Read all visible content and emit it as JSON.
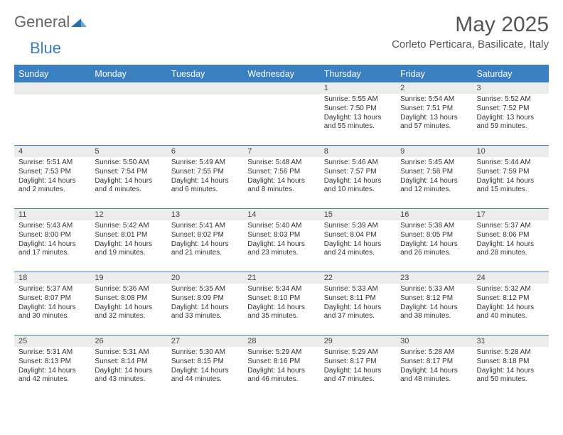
{
  "logo": {
    "part1": "General",
    "part2": "Blue"
  },
  "title": "May 2025",
  "location": "Corleto Perticara, Basilicate, Italy",
  "colors": {
    "accent": "#3a7fbf",
    "header_bg": "#3a7fbf",
    "daynum_bg": "#ececec",
    "text": "#333333",
    "title_text": "#555555",
    "background": "#ffffff"
  },
  "typography": {
    "title_fontsize": 30,
    "location_fontsize": 15,
    "header_fontsize": 12.5,
    "cell_fontsize": 10
  },
  "day_headers": [
    "Sunday",
    "Monday",
    "Tuesday",
    "Wednesday",
    "Thursday",
    "Friday",
    "Saturday"
  ],
  "weeks": [
    [
      {
        "n": "",
        "sr": "",
        "ss": "",
        "dl": ""
      },
      {
        "n": "",
        "sr": "",
        "ss": "",
        "dl": ""
      },
      {
        "n": "",
        "sr": "",
        "ss": "",
        "dl": ""
      },
      {
        "n": "",
        "sr": "",
        "ss": "",
        "dl": ""
      },
      {
        "n": "1",
        "sr": "Sunrise: 5:55 AM",
        "ss": "Sunset: 7:50 PM",
        "dl": "Daylight: 13 hours and 55 minutes."
      },
      {
        "n": "2",
        "sr": "Sunrise: 5:54 AM",
        "ss": "Sunset: 7:51 PM",
        "dl": "Daylight: 13 hours and 57 minutes."
      },
      {
        "n": "3",
        "sr": "Sunrise: 5:52 AM",
        "ss": "Sunset: 7:52 PM",
        "dl": "Daylight: 13 hours and 59 minutes."
      }
    ],
    [
      {
        "n": "4",
        "sr": "Sunrise: 5:51 AM",
        "ss": "Sunset: 7:53 PM",
        "dl": "Daylight: 14 hours and 2 minutes."
      },
      {
        "n": "5",
        "sr": "Sunrise: 5:50 AM",
        "ss": "Sunset: 7:54 PM",
        "dl": "Daylight: 14 hours and 4 minutes."
      },
      {
        "n": "6",
        "sr": "Sunrise: 5:49 AM",
        "ss": "Sunset: 7:55 PM",
        "dl": "Daylight: 14 hours and 6 minutes."
      },
      {
        "n": "7",
        "sr": "Sunrise: 5:48 AM",
        "ss": "Sunset: 7:56 PM",
        "dl": "Daylight: 14 hours and 8 minutes."
      },
      {
        "n": "8",
        "sr": "Sunrise: 5:46 AM",
        "ss": "Sunset: 7:57 PM",
        "dl": "Daylight: 14 hours and 10 minutes."
      },
      {
        "n": "9",
        "sr": "Sunrise: 5:45 AM",
        "ss": "Sunset: 7:58 PM",
        "dl": "Daylight: 14 hours and 12 minutes."
      },
      {
        "n": "10",
        "sr": "Sunrise: 5:44 AM",
        "ss": "Sunset: 7:59 PM",
        "dl": "Daylight: 14 hours and 15 minutes."
      }
    ],
    [
      {
        "n": "11",
        "sr": "Sunrise: 5:43 AM",
        "ss": "Sunset: 8:00 PM",
        "dl": "Daylight: 14 hours and 17 minutes."
      },
      {
        "n": "12",
        "sr": "Sunrise: 5:42 AM",
        "ss": "Sunset: 8:01 PM",
        "dl": "Daylight: 14 hours and 19 minutes."
      },
      {
        "n": "13",
        "sr": "Sunrise: 5:41 AM",
        "ss": "Sunset: 8:02 PM",
        "dl": "Daylight: 14 hours and 21 minutes."
      },
      {
        "n": "14",
        "sr": "Sunrise: 5:40 AM",
        "ss": "Sunset: 8:03 PM",
        "dl": "Daylight: 14 hours and 23 minutes."
      },
      {
        "n": "15",
        "sr": "Sunrise: 5:39 AM",
        "ss": "Sunset: 8:04 PM",
        "dl": "Daylight: 14 hours and 24 minutes."
      },
      {
        "n": "16",
        "sr": "Sunrise: 5:38 AM",
        "ss": "Sunset: 8:05 PM",
        "dl": "Daylight: 14 hours and 26 minutes."
      },
      {
        "n": "17",
        "sr": "Sunrise: 5:37 AM",
        "ss": "Sunset: 8:06 PM",
        "dl": "Daylight: 14 hours and 28 minutes."
      }
    ],
    [
      {
        "n": "18",
        "sr": "Sunrise: 5:37 AM",
        "ss": "Sunset: 8:07 PM",
        "dl": "Daylight: 14 hours and 30 minutes."
      },
      {
        "n": "19",
        "sr": "Sunrise: 5:36 AM",
        "ss": "Sunset: 8:08 PM",
        "dl": "Daylight: 14 hours and 32 minutes."
      },
      {
        "n": "20",
        "sr": "Sunrise: 5:35 AM",
        "ss": "Sunset: 8:09 PM",
        "dl": "Daylight: 14 hours and 33 minutes."
      },
      {
        "n": "21",
        "sr": "Sunrise: 5:34 AM",
        "ss": "Sunset: 8:10 PM",
        "dl": "Daylight: 14 hours and 35 minutes."
      },
      {
        "n": "22",
        "sr": "Sunrise: 5:33 AM",
        "ss": "Sunset: 8:11 PM",
        "dl": "Daylight: 14 hours and 37 minutes."
      },
      {
        "n": "23",
        "sr": "Sunrise: 5:33 AM",
        "ss": "Sunset: 8:12 PM",
        "dl": "Daylight: 14 hours and 38 minutes."
      },
      {
        "n": "24",
        "sr": "Sunrise: 5:32 AM",
        "ss": "Sunset: 8:12 PM",
        "dl": "Daylight: 14 hours and 40 minutes."
      }
    ],
    [
      {
        "n": "25",
        "sr": "Sunrise: 5:31 AM",
        "ss": "Sunset: 8:13 PM",
        "dl": "Daylight: 14 hours and 42 minutes."
      },
      {
        "n": "26",
        "sr": "Sunrise: 5:31 AM",
        "ss": "Sunset: 8:14 PM",
        "dl": "Daylight: 14 hours and 43 minutes."
      },
      {
        "n": "27",
        "sr": "Sunrise: 5:30 AM",
        "ss": "Sunset: 8:15 PM",
        "dl": "Daylight: 14 hours and 44 minutes."
      },
      {
        "n": "28",
        "sr": "Sunrise: 5:29 AM",
        "ss": "Sunset: 8:16 PM",
        "dl": "Daylight: 14 hours and 46 minutes."
      },
      {
        "n": "29",
        "sr": "Sunrise: 5:29 AM",
        "ss": "Sunset: 8:17 PM",
        "dl": "Daylight: 14 hours and 47 minutes."
      },
      {
        "n": "30",
        "sr": "Sunrise: 5:28 AM",
        "ss": "Sunset: 8:17 PM",
        "dl": "Daylight: 14 hours and 48 minutes."
      },
      {
        "n": "31",
        "sr": "Sunrise: 5:28 AM",
        "ss": "Sunset: 8:18 PM",
        "dl": "Daylight: 14 hours and 50 minutes."
      }
    ]
  ]
}
